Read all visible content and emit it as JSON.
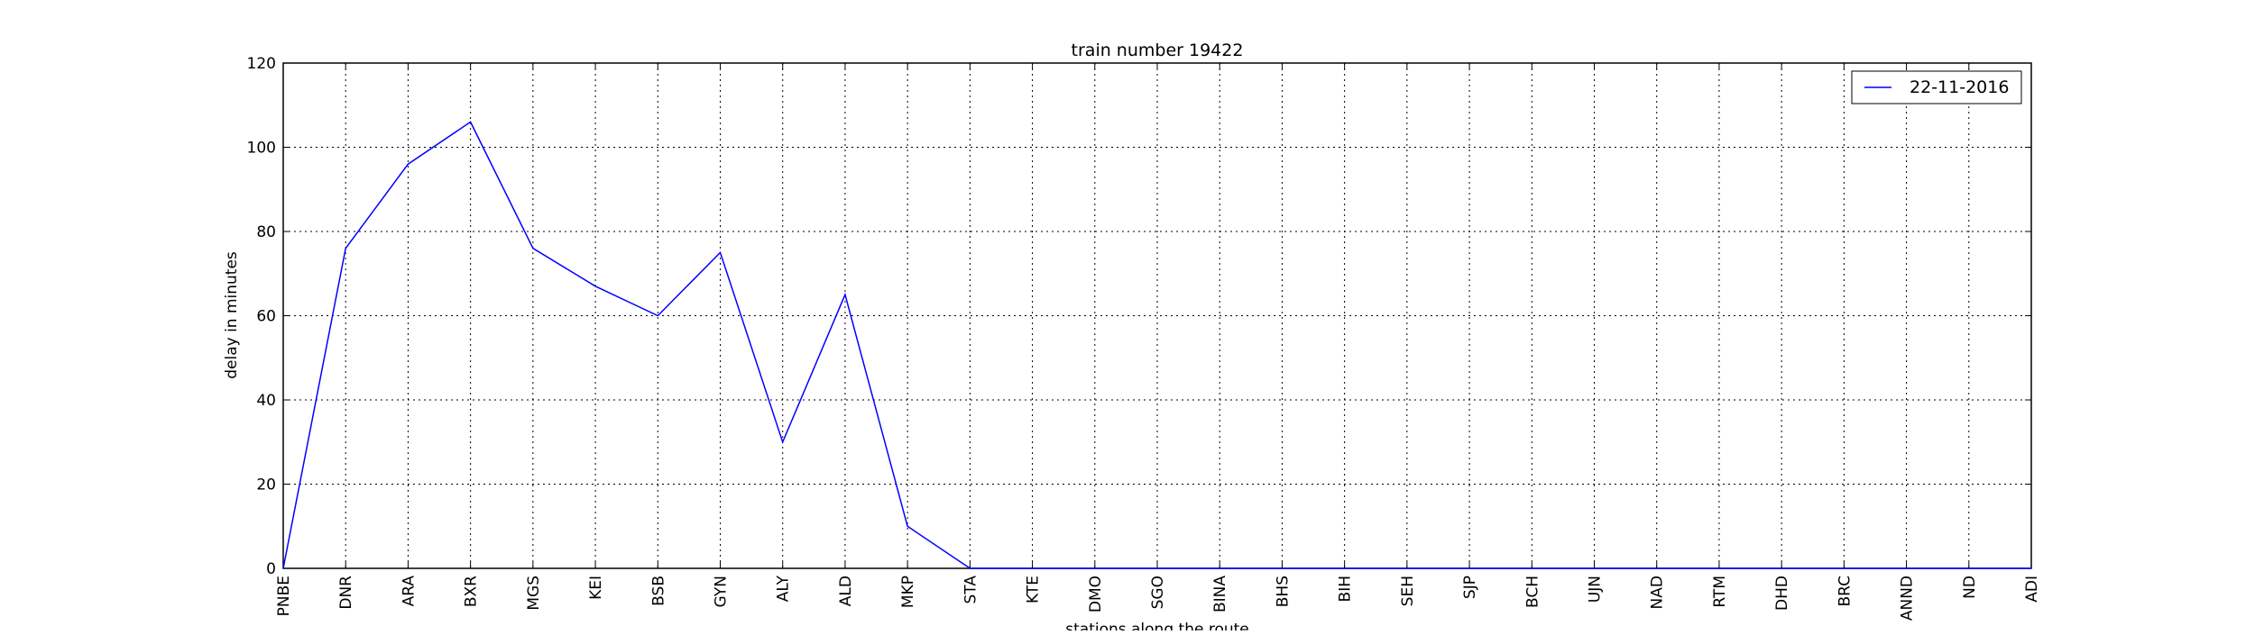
{
  "chart_data": {
    "type": "line",
    "title": "train number 19422",
    "xlabel": "stations along the route",
    "ylabel": "delay in minutes",
    "ylim": [
      0,
      120
    ],
    "yticks": [
      0,
      20,
      40,
      60,
      80,
      100,
      120
    ],
    "grid": true,
    "legend_position": "top-right",
    "categories": [
      "PNBE",
      "DNR",
      "ARA",
      "BXR",
      "MGS",
      "KEI",
      "BSB",
      "GYN",
      "ALY",
      "ALD",
      "MKP",
      "STA",
      "KTE",
      "DMO",
      "SGO",
      "BINA",
      "BHS",
      "BIH",
      "SEH",
      "SJP",
      "BCH",
      "UJN",
      "NAD",
      "RTM",
      "DHD",
      "BRC",
      "ANND",
      "ND",
      "ADI"
    ],
    "series": [
      {
        "name": "22-11-2016",
        "color": "#0000ff",
        "values": [
          0,
          76,
          96,
          106,
          76,
          67,
          60,
          75,
          30,
          65,
          10,
          0,
          0,
          0,
          0,
          0,
          0,
          0,
          0,
          0,
          0,
          0,
          0,
          0,
          0,
          0,
          0,
          0,
          0
        ]
      }
    ]
  }
}
